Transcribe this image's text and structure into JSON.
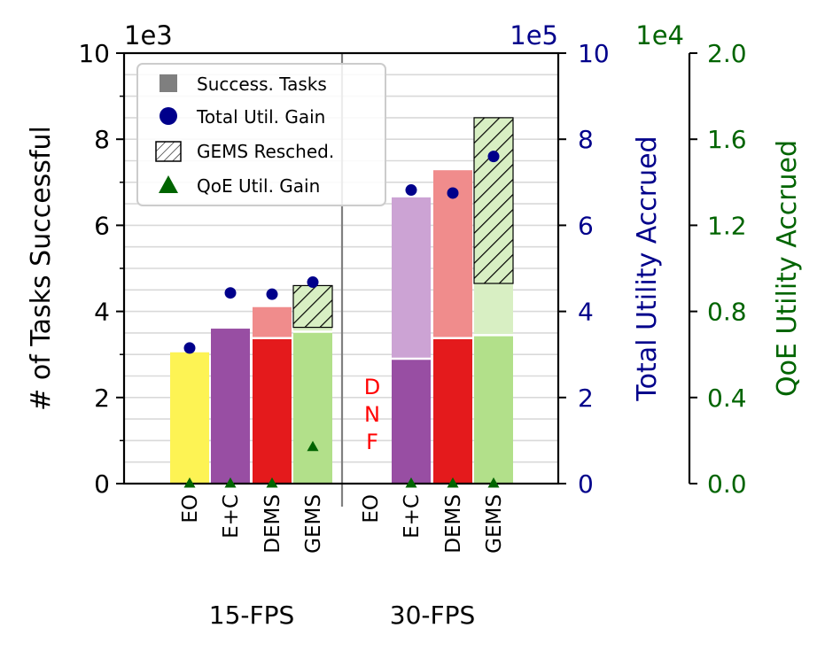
{
  "chart_data": {
    "type": "bar",
    "groups": [
      "15-FPS",
      "30-FPS"
    ],
    "methods": [
      "EO",
      "E+C",
      "DEMS",
      "GEMS"
    ],
    "left_axis": {
      "label": "# of Tasks Successful",
      "multiplier": "1e3",
      "ylim": [
        0,
        10
      ],
      "ticks": [
        "0",
        "2",
        "4",
        "6",
        "8",
        "10"
      ]
    },
    "right_axis": {
      "label": "Total Utility Accrued",
      "multiplier": "1e5",
      "ylim": [
        0,
        10
      ],
      "ticks": [
        "0",
        "2",
        "4",
        "6",
        "8",
        "10"
      ],
      "color": "#00008b"
    },
    "far_right_axis": {
      "label": "QoE Utility Accrued",
      "multiplier": "1e4",
      "ylim": [
        0,
        2.0
      ],
      "ticks": [
        "0.0",
        "0.4",
        "0.8",
        "1.2",
        "1.6",
        "2.0"
      ],
      "color": "#006400"
    },
    "legend": {
      "position": "upper-left",
      "entries": [
        "Success. Tasks",
        "Total Util. Gain",
        "GEMS Resched.",
        "QoE Util. Gain"
      ]
    },
    "dnf_label": [
      "D",
      "N",
      "F"
    ],
    "bars": [
      {
        "group": "15-FPS",
        "method": "EO",
        "success": 3.05,
        "total_bar": 3.05,
        "util_gain": 3.15,
        "qoe_gain": 0.0,
        "color": "#fdf354",
        "light_color": "#fdf354"
      },
      {
        "group": "15-FPS",
        "method": "E+C",
        "success": 3.6,
        "total_bar": 3.6,
        "util_gain": 4.43,
        "qoe_gain": 0.0,
        "color": "#984ea3",
        "light_color": "#cca3d4"
      },
      {
        "group": "15-FPS",
        "method": "DEMS",
        "success": 3.38,
        "total_bar": 4.1,
        "util_gain": 4.4,
        "qoe_gain": 0.0,
        "color": "#e41a1c",
        "light_color": "#f08c8c"
      },
      {
        "group": "15-FPS",
        "method": "GEMS",
        "success": 3.53,
        "total_bar": 3.63,
        "resched_top": 4.6,
        "util_gain": 4.68,
        "qoe_gain": 0.17,
        "color": "#b2e08a",
        "light_color": "#d8efc3"
      },
      {
        "group": "30-FPS",
        "method": "EO",
        "success": 0,
        "total_bar": 0,
        "util_gain": null,
        "qoe_gain": null,
        "dnf": true,
        "color": "#fdf354",
        "light_color": "#fdf354"
      },
      {
        "group": "30-FPS",
        "method": "E+C",
        "success": 2.9,
        "total_bar": 6.65,
        "util_gain": 6.82,
        "qoe_gain": 0.0,
        "color": "#984ea3",
        "light_color": "#cca3d4"
      },
      {
        "group": "30-FPS",
        "method": "DEMS",
        "success": 3.38,
        "total_bar": 7.28,
        "util_gain": 6.75,
        "qoe_gain": 0.0,
        "color": "#e41a1c",
        "light_color": "#f08c8c"
      },
      {
        "group": "30-FPS",
        "method": "GEMS",
        "success": 3.45,
        "total_bar": 4.65,
        "resched_top": 8.5,
        "util_gain": 7.6,
        "qoe_gain": 0.0,
        "color": "#b2e08a",
        "light_color": "#d8efc3"
      }
    ]
  }
}
